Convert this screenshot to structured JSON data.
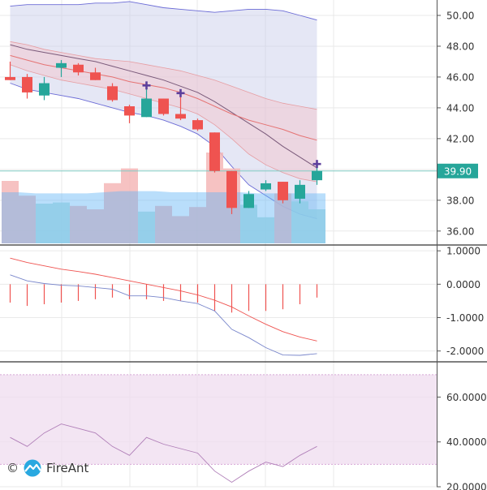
{
  "colors": {
    "up": "#26a69a",
    "down": "#ef5350",
    "volume_up": "#b2dfdb",
    "volume_down": "#f5b7b7",
    "volume_ma": "#64b5f6",
    "bb_fill": "#c5cae9",
    "bb_line": "#6b6bd6",
    "env_fill": "#f3c1c9",
    "ma_dark": "#7a5a7a",
    "ma_red": "#e57373",
    "plus_marker": "#5c3f9c",
    "price_line": "#80cbc4",
    "price_badge": "#26a69a",
    "macd_line": "#7986cb",
    "signal_line": "#ef5350",
    "hist": "#ef5350",
    "rsi_band": "#efdcef",
    "rsi_line": "#b07fb8",
    "grid": "#e9e9e9",
    "divider": "#333333"
  },
  "watermark": {
    "copyright": "©",
    "brand": "FireAnt"
  },
  "chart_data": [
    {
      "type": "candlestick",
      "panel": "price",
      "ylim": [
        35.2,
        51.0
      ],
      "yticks": [
        "36.00",
        "38.00",
        "40.00",
        "42.00",
        "44.00",
        "46.00",
        "48.00",
        "50.00"
      ],
      "last_price": "39.90",
      "candles": [
        {
          "o": 46.0,
          "h": 47.0,
          "l": 45.8,
          "c": 45.8
        },
        {
          "o": 46.0,
          "h": 46.2,
          "l": 44.6,
          "c": 45.0
        },
        {
          "o": 44.8,
          "h": 46.0,
          "l": 44.5,
          "c": 45.6
        },
        {
          "o": 46.6,
          "h": 47.1,
          "l": 46.0,
          "c": 46.9
        },
        {
          "o": 46.8,
          "h": 46.9,
          "l": 46.1,
          "c": 46.3
        },
        {
          "o": 46.3,
          "h": 46.6,
          "l": 45.8,
          "c": 45.8
        },
        {
          "o": 45.4,
          "h": 45.6,
          "l": 44.4,
          "c": 44.5
        },
        {
          "o": 44.1,
          "h": 44.2,
          "l": 43.0,
          "c": 43.5
        },
        {
          "o": 43.4,
          "h": 45.4,
          "l": 43.4,
          "c": 44.6
        },
        {
          "o": 44.6,
          "h": 44.6,
          "l": 43.5,
          "c": 43.6
        },
        {
          "o": 43.6,
          "h": 44.9,
          "l": 43.2,
          "c": 43.3
        },
        {
          "o": 43.2,
          "h": 43.3,
          "l": 42.5,
          "c": 42.6
        },
        {
          "o": 42.4,
          "h": 42.4,
          "l": 39.8,
          "c": 39.9
        },
        {
          "o": 39.9,
          "h": 39.9,
          "l": 37.1,
          "c": 37.5
        },
        {
          "o": 37.5,
          "h": 38.6,
          "l": 37.5,
          "c": 38.4
        },
        {
          "o": 38.7,
          "h": 39.3,
          "l": 38.6,
          "c": 39.1
        },
        {
          "o": 39.2,
          "h": 39.2,
          "l": 37.8,
          "c": 38.0
        },
        {
          "o": 38.1,
          "h": 39.3,
          "l": 37.8,
          "c": 39.0
        },
        {
          "o": 39.3,
          "h": 40.3,
          "l": 39.0,
          "c": 39.9
        }
      ],
      "plus_markers": [
        8,
        10,
        18
      ],
      "bollinger_upper": [
        50.6,
        50.7,
        50.7,
        50.7,
        50.7,
        50.8,
        50.8,
        50.9,
        50.7,
        50.5,
        50.4,
        50.3,
        50.2,
        50.3,
        50.4,
        50.4,
        50.3,
        50.0,
        49.7
      ],
      "bollinger_lower": [
        45.6,
        45.2,
        45.0,
        44.8,
        44.6,
        44.3,
        44.0,
        43.7,
        43.5,
        43.2,
        42.8,
        42.3,
        41.5,
        40.2,
        39.0,
        38.3,
        37.6,
        37.1,
        36.8
      ],
      "envelope_upper": [
        48.3,
        48.1,
        47.8,
        47.6,
        47.4,
        47.2,
        47.1,
        47.0,
        46.8,
        46.6,
        46.4,
        46.1,
        45.8,
        45.4,
        45.0,
        44.6,
        44.3,
        44.1,
        43.9
      ],
      "envelope_lower": [
        46.8,
        46.4,
        46.1,
        45.8,
        45.6,
        45.4,
        45.2,
        44.9,
        44.6,
        44.3,
        44.0,
        43.6,
        42.9,
        42.0,
        41.0,
        40.3,
        39.8,
        39.4,
        39.2
      ],
      "ma_dark": [
        48.1,
        47.8,
        47.6,
        47.4,
        47.2,
        47.0,
        46.7,
        46.4,
        46.1,
        45.8,
        45.4,
        45.0,
        44.4,
        43.7,
        43.0,
        42.3,
        41.5,
        40.8,
        40.1
      ],
      "ma_red": [
        47.4,
        47.1,
        46.8,
        46.6,
        46.4,
        46.2,
        46.0,
        45.7,
        45.5,
        45.3,
        45.0,
        44.6,
        44.1,
        43.6,
        43.2,
        42.9,
        42.6,
        42.2,
        41.9
      ],
      "volume": [
        0.55,
        0.42,
        0.35,
        0.36,
        0.33,
        0.3,
        0.53,
        0.66,
        0.28,
        0.33,
        0.24,
        0.32,
        0.8,
        0.66,
        0.34,
        0.23,
        0.44,
        0.37,
        0.3
      ],
      "volume_ma": [
        0.45,
        0.45,
        0.44,
        0.44,
        0.44,
        0.44,
        0.45,
        0.46,
        0.46,
        0.46,
        0.45,
        0.45,
        0.45,
        0.45,
        0.45,
        0.44,
        0.44,
        0.44,
        0.44
      ]
    },
    {
      "type": "line",
      "panel": "macd",
      "ylim": [
        -2.3,
        1.15
      ],
      "yticks": [
        "1.0000",
        "0.0000",
        "-1.0000",
        "-2.0000"
      ],
      "macd": [
        0.28,
        0.1,
        0.02,
        -0.03,
        -0.05,
        -0.1,
        -0.15,
        -0.35,
        -0.35,
        -0.4,
        -0.5,
        -0.58,
        -0.8,
        -1.35,
        -1.6,
        -1.9,
        -2.12,
        -2.13,
        -2.08
      ],
      "signal": [
        0.78,
        0.65,
        0.55,
        0.45,
        0.38,
        0.3,
        0.2,
        0.1,
        0.0,
        -0.1,
        -0.2,
        -0.32,
        -0.48,
        -0.68,
        -0.95,
        -1.2,
        -1.42,
        -1.58,
        -1.7
      ],
      "histogram": [
        -0.55,
        -0.65,
        -0.6,
        -0.55,
        -0.5,
        -0.45,
        -0.4,
        -0.45,
        -0.45,
        -0.5,
        -0.5,
        -0.55,
        -0.8,
        -0.85,
        -0.8,
        -0.8,
        -0.75,
        -0.6,
        -0.4
      ]
    },
    {
      "type": "line",
      "panel": "rsi",
      "ylim": [
        20,
        75
      ],
      "yticks": [
        "20.0000",
        "40.0000",
        "60.0000"
      ],
      "band": [
        30,
        70
      ],
      "rsi": [
        42,
        38,
        44,
        48,
        46,
        44,
        38,
        34,
        42,
        39,
        37,
        35,
        27,
        22,
        27,
        31,
        29,
        34,
        38
      ]
    }
  ]
}
